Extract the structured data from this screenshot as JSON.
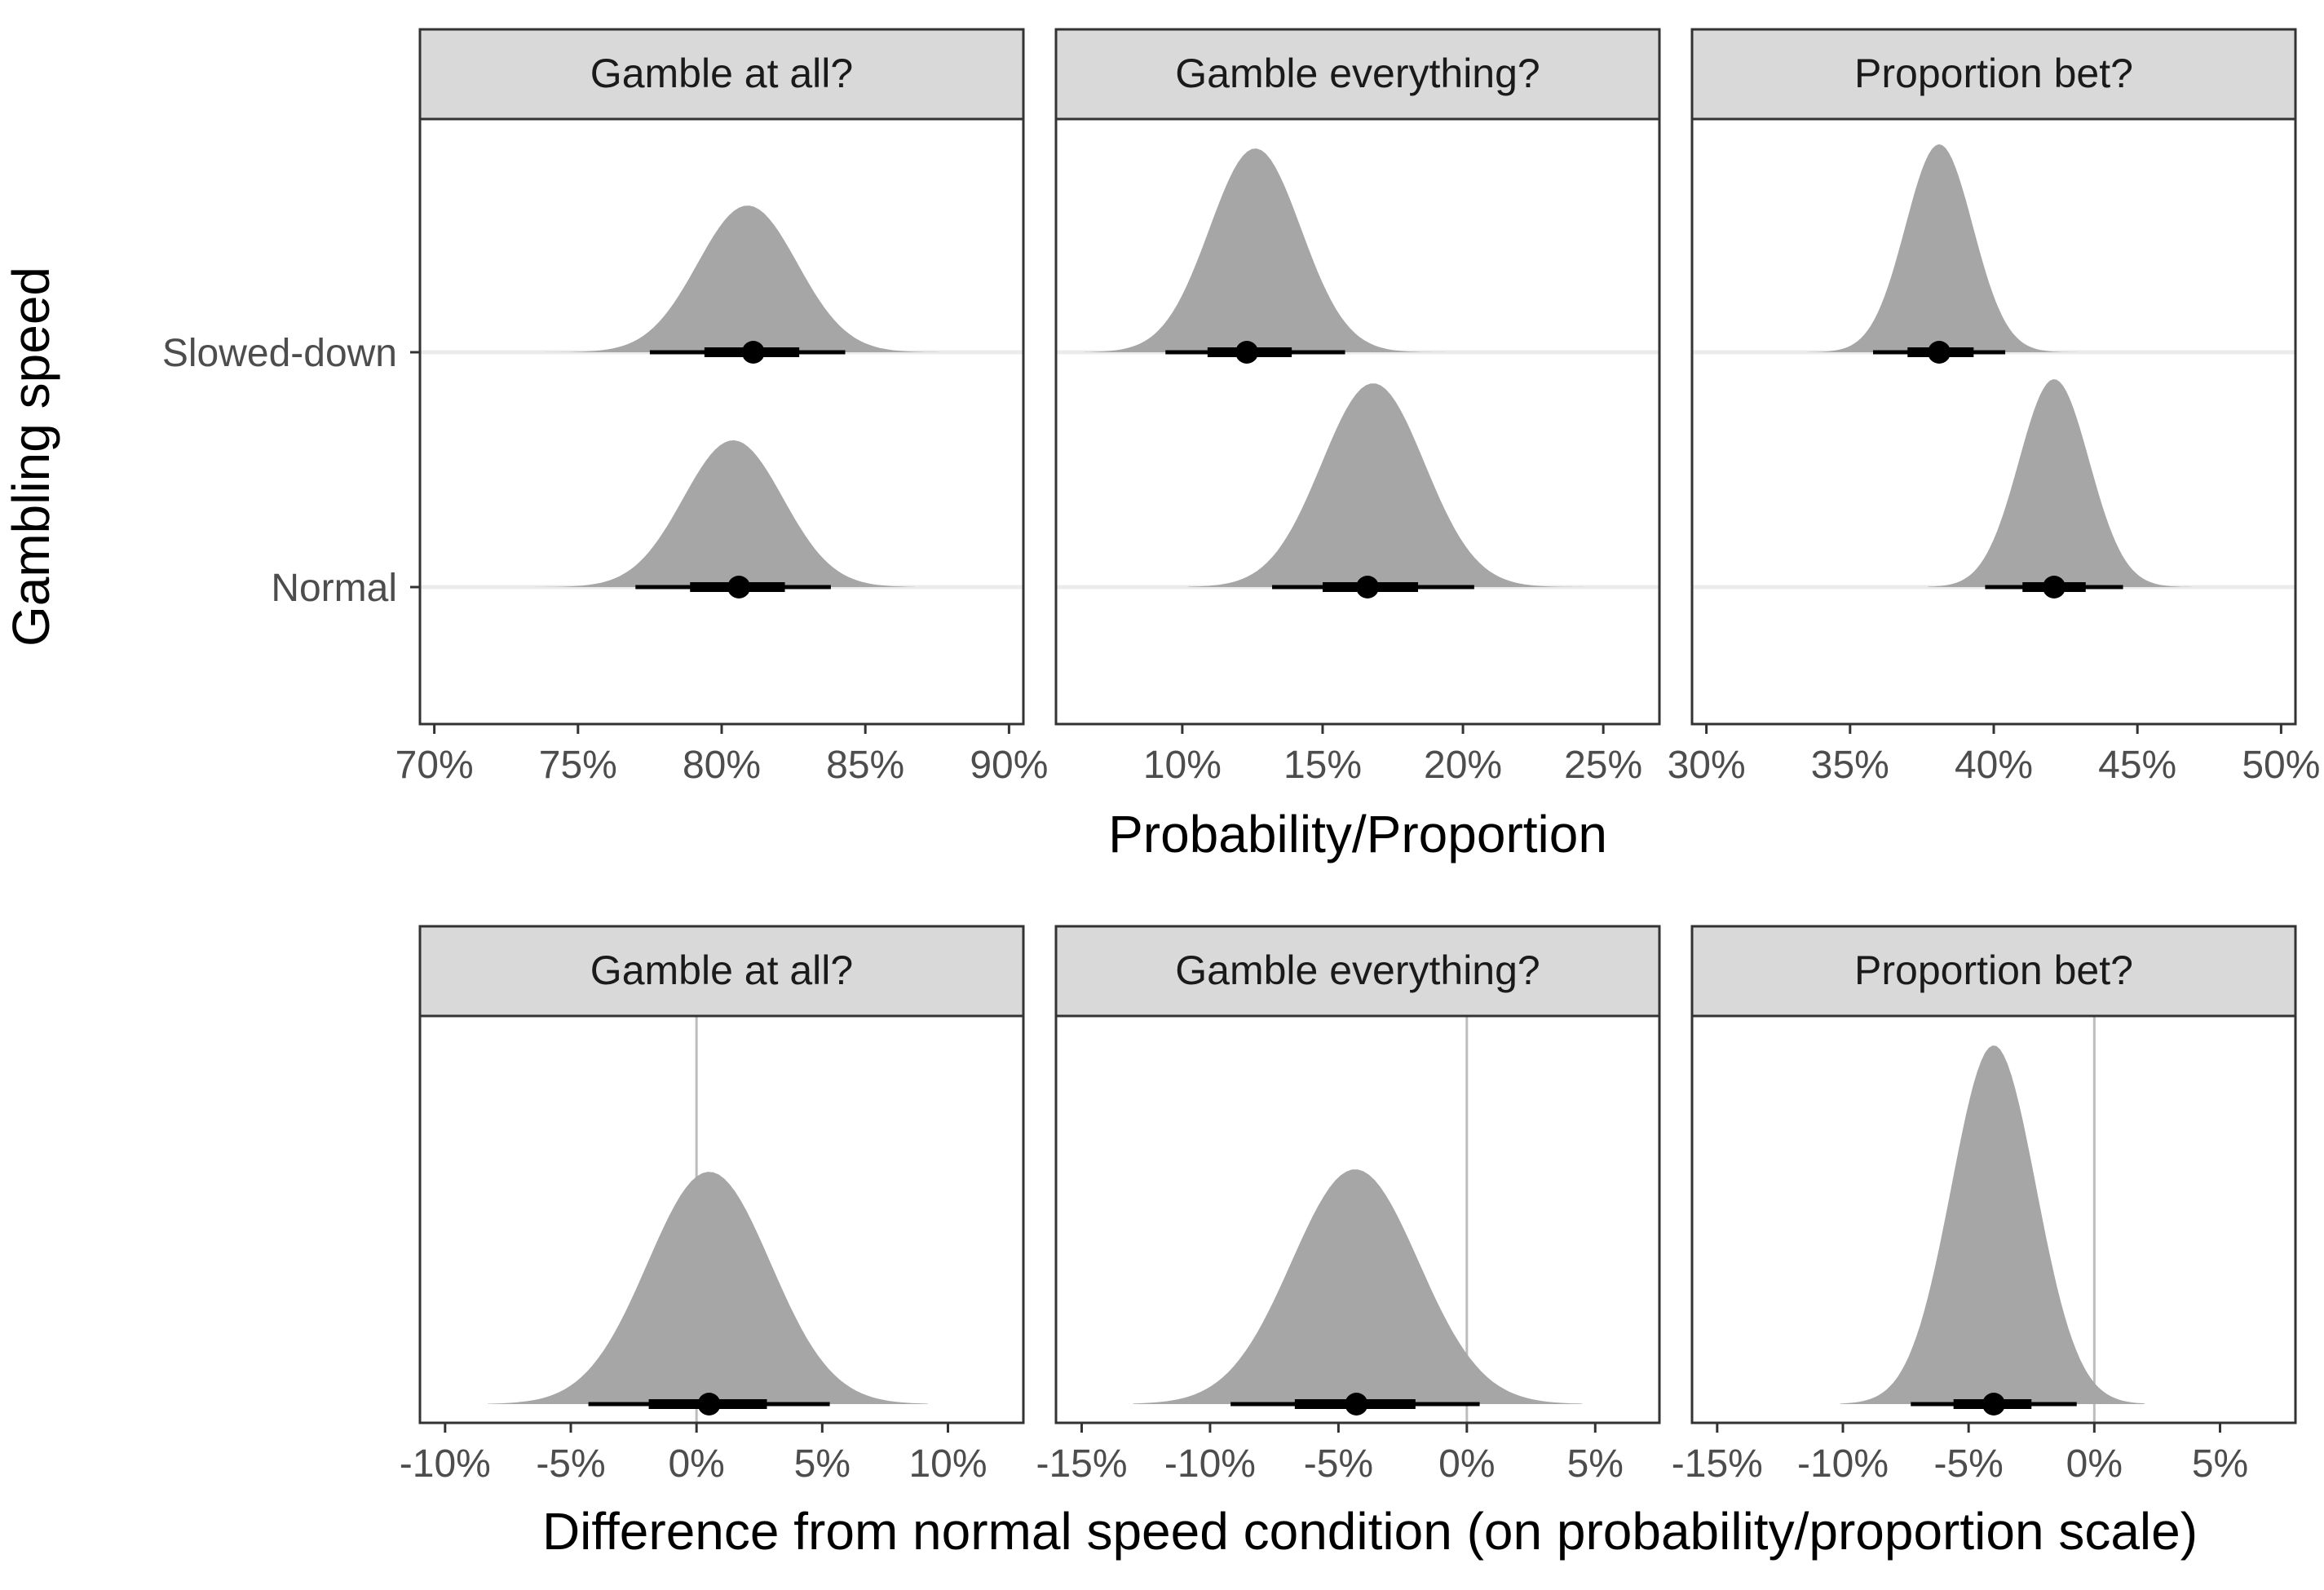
{
  "chart_data": [
    {
      "type": "area",
      "title": "",
      "ylabel": "Gambling speed",
      "xlabel": "Probability/Proportion",
      "categories": [
        "Slowed-down",
        "Normal"
      ],
      "panels": [
        {
          "strip": "Gamble at all?",
          "xlim": [
            0.695,
            0.905
          ],
          "xticks": [
            0.7,
            0.75,
            0.8,
            0.85,
            0.9
          ],
          "xtick_labels": [
            "70%",
            "75%",
            "80%",
            "85%",
            "90%"
          ],
          "series": [
            {
              "name": "Slowed-down",
              "point": 0.811,
              "interval_66": [
                0.794,
                0.827
              ],
              "interval_95": [
                0.775,
                0.843
              ],
              "range": [
                0.736,
                0.876
              ]
            },
            {
              "name": "Normal",
              "point": 0.806,
              "interval_66": [
                0.789,
                0.822
              ],
              "interval_95": [
                0.77,
                0.838
              ],
              "range": [
                0.735,
                0.867
              ]
            }
          ]
        },
        {
          "strip": "Gamble everything?",
          "xlim": [
            0.055,
            0.27
          ],
          "xticks": [
            0.1,
            0.15,
            0.2,
            0.25
          ],
          "xtick_labels": [
            "10%",
            "15%",
            "20%",
            "25%"
          ],
          "series": [
            {
              "name": "Slowed-down",
              "point": 0.123,
              "interval_66": [
                0.109,
                0.139
              ],
              "interval_95": [
                0.094,
                0.158
              ],
              "range": [
                0.065,
                0.198
              ]
            },
            {
              "name": "Normal",
              "point": 0.166,
              "interval_66": [
                0.15,
                0.184
              ],
              "interval_95": [
                0.132,
                0.204
              ],
              "range": [
                0.102,
                0.243
              ]
            }
          ]
        },
        {
          "strip": "Proportion bet?",
          "xlim": [
            0.295,
            0.505
          ],
          "xticks": [
            0.3,
            0.35,
            0.4,
            0.45,
            0.5
          ],
          "xtick_labels": [
            "30%",
            "35%",
            "40%",
            "45%",
            "50%"
          ],
          "series": [
            {
              "name": "Slowed-down",
              "point": 0.381,
              "interval_66": [
                0.37,
                0.393
              ],
              "interval_95": [
                0.358,
                0.404
              ],
              "range": [
                0.335,
                0.429
              ]
            },
            {
              "name": "Normal",
              "point": 0.421,
              "interval_66": [
                0.41,
                0.432
              ],
              "interval_95": [
                0.397,
                0.445
              ],
              "range": [
                0.377,
                0.469
              ]
            }
          ]
        }
      ]
    },
    {
      "type": "area",
      "title": "",
      "xlabel": "Difference from normal speed condition (on probability/proportion scale)",
      "ylabel": "",
      "reference_line": 0,
      "panels": [
        {
          "strip": "Gamble at all?",
          "xlim": [
            -0.11,
            0.13
          ],
          "xticks": [
            -0.1,
            -0.05,
            0.0,
            0.05,
            0.1
          ],
          "xtick_labels": [
            "-10%",
            "-5%",
            "0%",
            "5%",
            "10%"
          ],
          "series": [
            {
              "point": 0.005,
              "interval_66": [
                -0.019,
                0.028
              ],
              "interval_95": [
                -0.043,
                0.053
              ],
              "range": [
                -0.083,
                0.092
              ]
            }
          ]
        },
        {
          "strip": "Gamble everything?",
          "xlim": [
            -0.16,
            0.075
          ],
          "xticks": [
            -0.15,
            -0.1,
            -0.05,
            0.0,
            0.05
          ],
          "xtick_labels": [
            "-15%",
            "-10%",
            "-5%",
            "0%",
            "5%"
          ],
          "series": [
            {
              "point": -0.043,
              "interval_66": [
                -0.067,
                -0.02
              ],
              "interval_95": [
                -0.092,
                0.005
              ],
              "range": [
                -0.13,
                0.045
              ]
            }
          ]
        },
        {
          "strip": "Proportion bet?",
          "xlim": [
            -0.16,
            0.08
          ],
          "xticks": [
            -0.15,
            -0.1,
            -0.05,
            0.0,
            0.05
          ],
          "xtick_labels": [
            "-15%",
            "-10%",
            "-5%",
            "0%",
            "5%"
          ],
          "series": [
            {
              "point": -0.04,
              "interval_66": [
                -0.056,
                -0.025
              ],
              "interval_95": [
                -0.073,
                -0.007
              ],
              "range": [
                -0.101,
                0.02
              ]
            }
          ]
        }
      ]
    }
  ]
}
